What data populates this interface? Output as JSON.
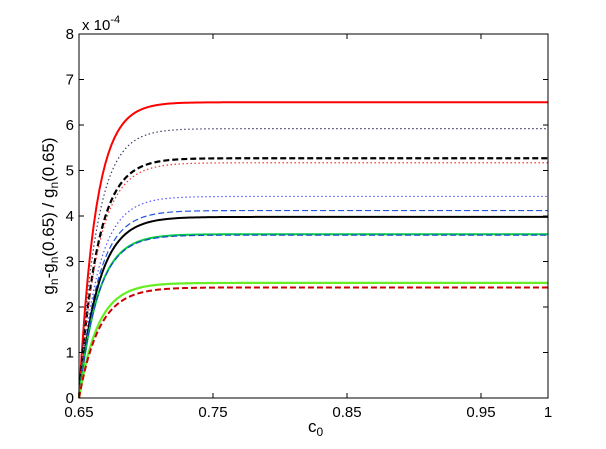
{
  "chart_data": {
    "type": "line",
    "title": "",
    "xlabel": "c0",
    "xlabel_main": "c",
    "xlabel_sub": "0",
    "ylabel": "gn-gn(0.65) / gn(0.65)",
    "ylabel_parts": [
      "g",
      "n",
      "-g",
      "n",
      "(0.65) / g",
      "n",
      "(0.65)"
    ],
    "y_exponent_text": "x 10",
    "y_exponent_power": "-4",
    "xlim": [
      0.65,
      1.0
    ],
    "ylim": [
      0,
      8
    ],
    "y_scale_factor": 0.0001,
    "grid": false,
    "legend": "none",
    "x_ticks": [
      0.65,
      0.75,
      0.85,
      0.95,
      1.0
    ],
    "x_tick_labels": [
      "0.65",
      "0.75",
      "0.85",
      "0.95",
      "1"
    ],
    "y_ticks": [
      0,
      1,
      2,
      3,
      4,
      5,
      6,
      7,
      8
    ],
    "y_tick_labels": [
      "0",
      "1",
      "2",
      "3",
      "4",
      "5",
      "6",
      "7",
      "8"
    ],
    "curve_model": "saturating",
    "series": [
      {
        "color": "#ff0000",
        "style": "solid",
        "width": 2.0,
        "plateau": 6.5,
        "rate": 80
      },
      {
        "color": "#3d3d6b",
        "style": "dotted",
        "width": 1.2,
        "plateau": 5.92,
        "rate": 75
      },
      {
        "color": "#000000",
        "style": "dashed",
        "width": 2.2,
        "plateau": 5.27,
        "rate": 72
      },
      {
        "color": "#ff3030",
        "style": "dotted",
        "width": 1.2,
        "plateau": 5.17,
        "rate": 70
      },
      {
        "color": "#5555ff",
        "style": "dotted",
        "width": 1.2,
        "plateau": 4.43,
        "rate": 70
      },
      {
        "color": "#2255dd",
        "style": "dashed",
        "width": 1.2,
        "plateau": 4.12,
        "rate": 70
      },
      {
        "color": "#000000",
        "style": "solid",
        "width": 2.0,
        "plateau": 3.98,
        "rate": 68
      },
      {
        "color": "#00cc44",
        "style": "solid",
        "width": 2.0,
        "plateau": 3.6,
        "rate": 70
      },
      {
        "color": "#2244cc",
        "style": "dashed",
        "width": 1.2,
        "plateau": 3.58,
        "rate": 70
      },
      {
        "color": "#66ee22",
        "style": "solid",
        "width": 2.2,
        "plateau": 2.53,
        "rate": 70
      },
      {
        "color": "#cc0000",
        "style": "dashed",
        "width": 2.0,
        "plateau": 2.43,
        "rate": 66
      }
    ]
  }
}
